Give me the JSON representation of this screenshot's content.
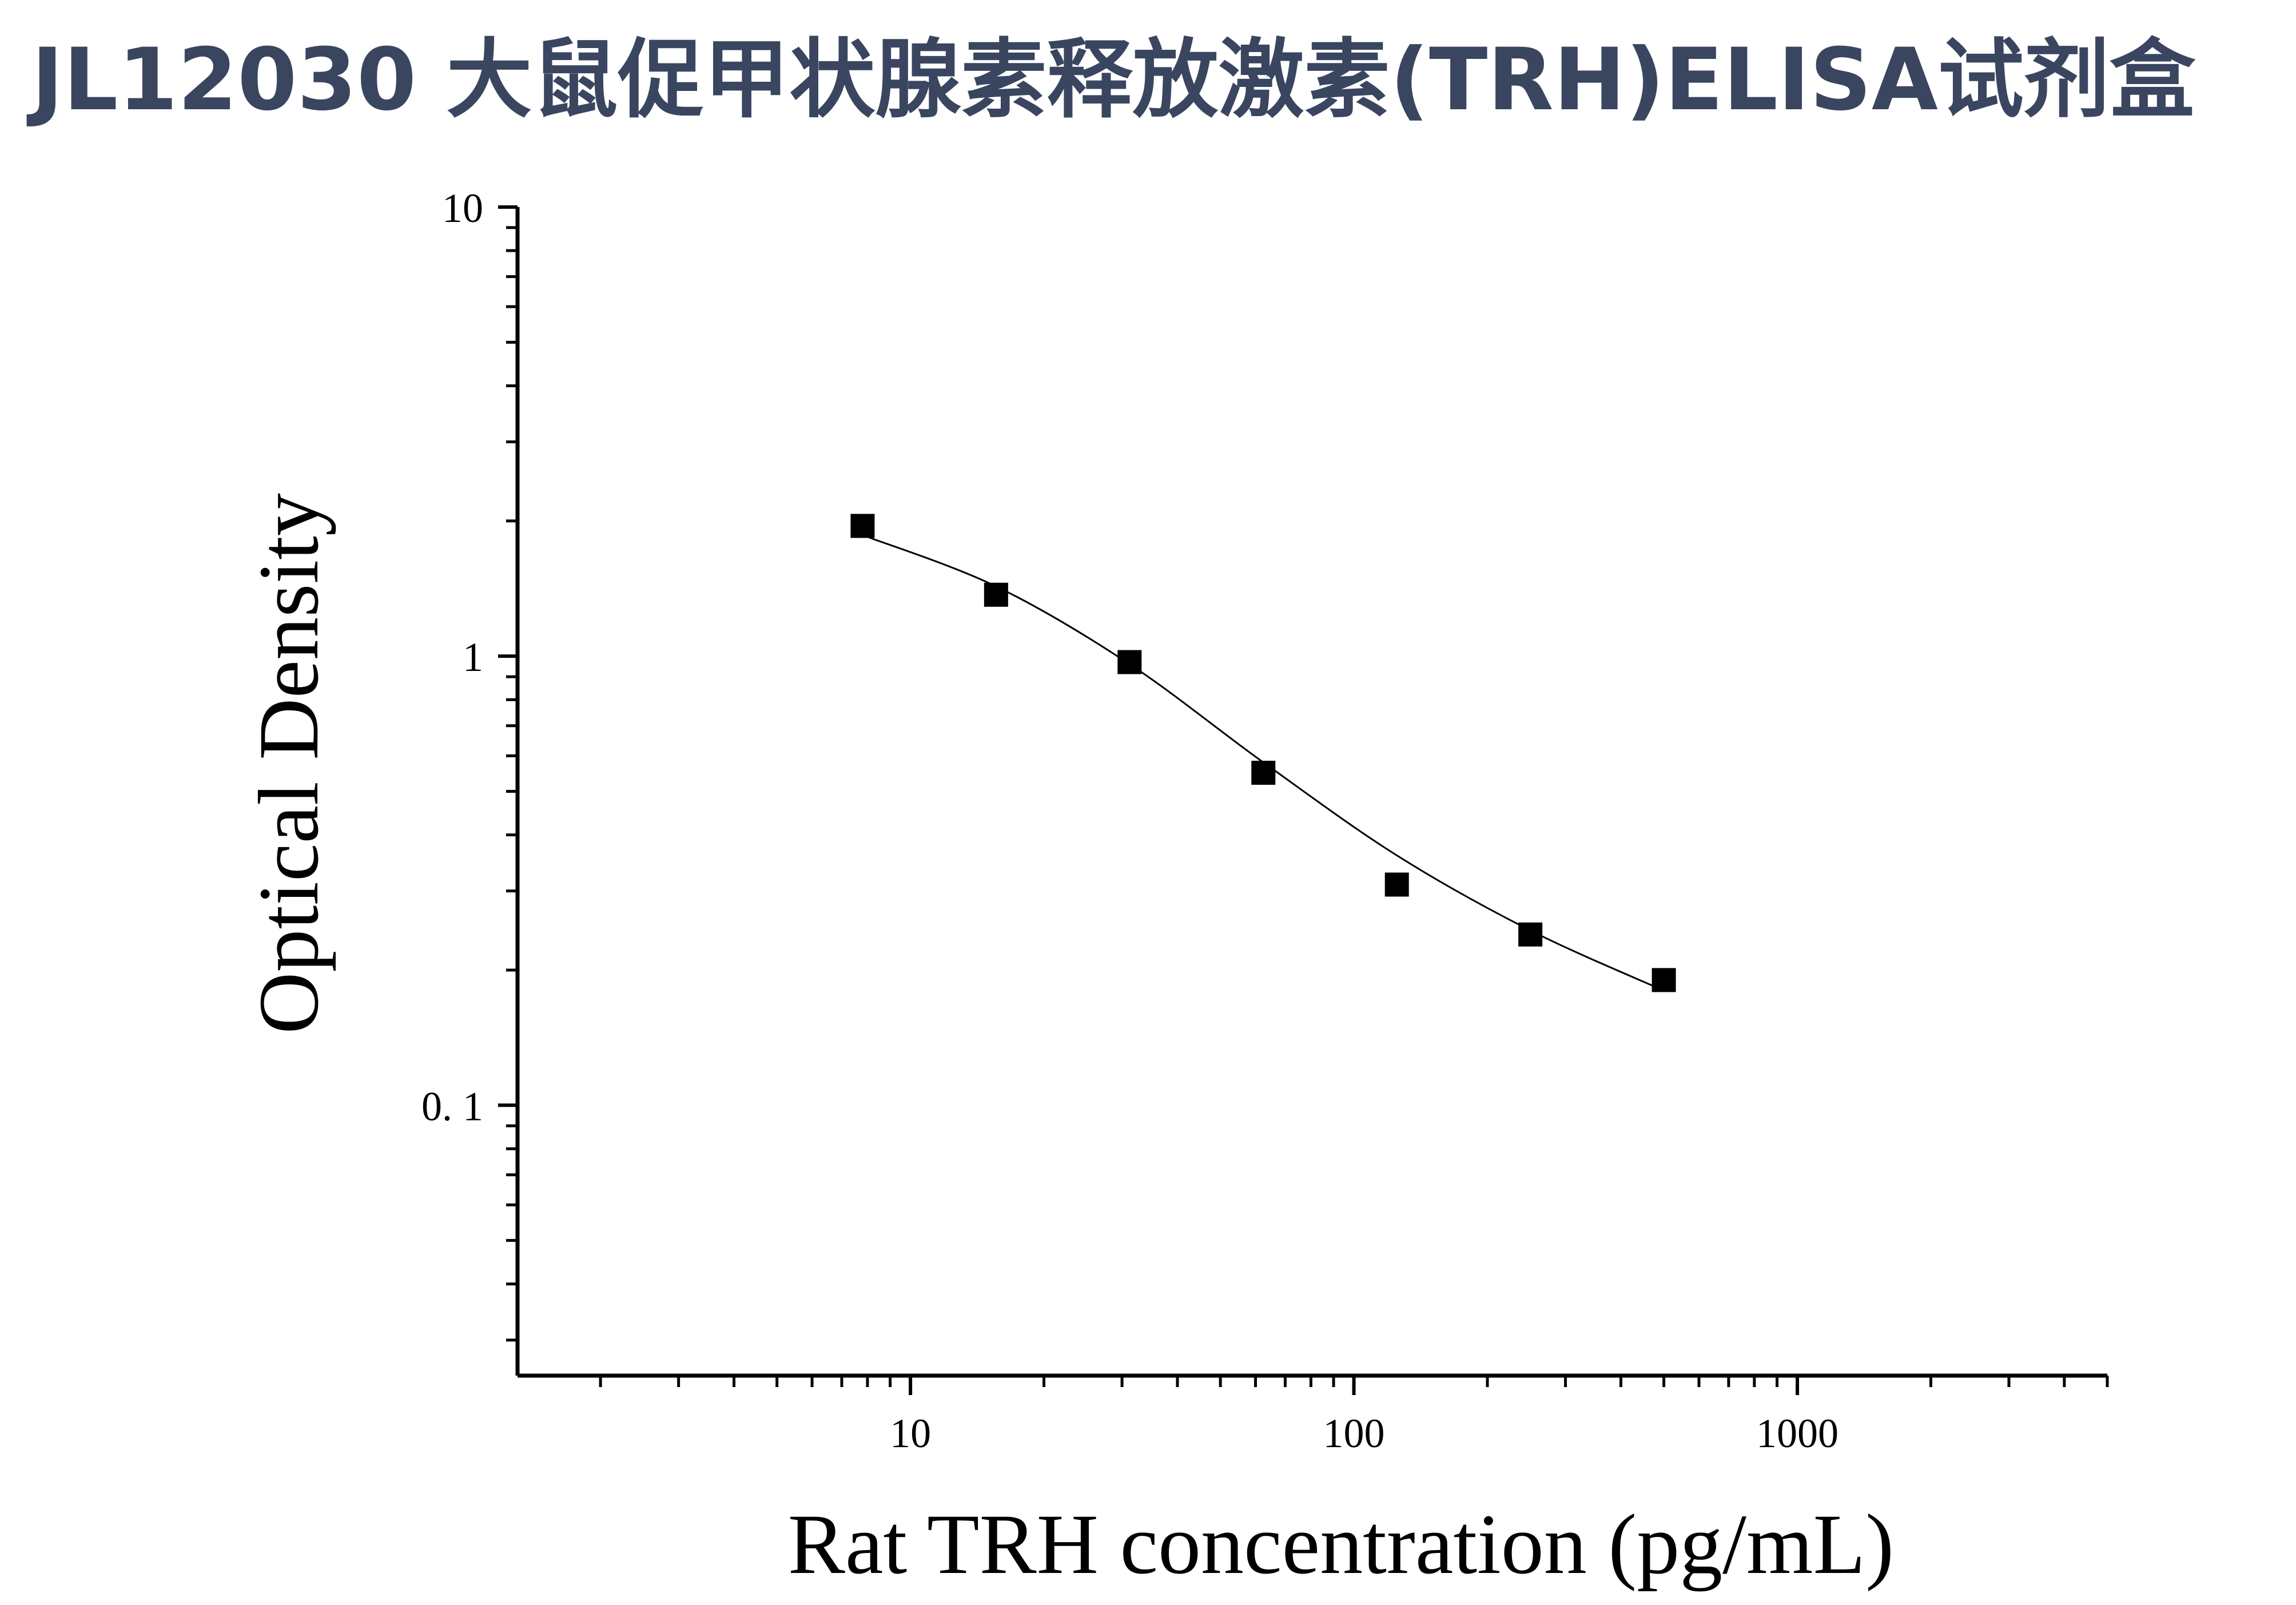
{
  "title": "JL12030 大鼠促甲状腺素释放激素(TRH)ELISA试剂盒",
  "chart_data": {
    "type": "scatter",
    "xlabel": "Rat TRH concentration (pg/mL)",
    "ylabel": "Optical Density",
    "xscale": "log",
    "yscale": "log",
    "xlim": [
      1.3,
      5000
    ],
    "ylim": [
      0.025,
      10
    ],
    "x_ticks": [
      10,
      100,
      1000
    ],
    "x_tick_labels": [
      "10",
      "100",
      "1000"
    ],
    "y_ticks": [
      0.1,
      1,
      10
    ],
    "y_tick_labels": [
      "0. 1",
      "1",
      "10"
    ],
    "grid": false,
    "legend": "none",
    "marker": "square",
    "color": "#000000",
    "series": [
      {
        "x": [
          7.8,
          15.6,
          31.2,
          62.5,
          125,
          250,
          500
        ],
        "y": [
          1.95,
          1.37,
          0.97,
          0.55,
          0.31,
          0.24,
          0.19
        ]
      }
    ],
    "fit_curve": {
      "type": "4PL",
      "x": [
        7.8,
        15.6,
        31.2,
        62.5,
        125,
        250,
        500
      ],
      "y": [
        1.86,
        1.43,
        0.96,
        0.58,
        0.36,
        0.245,
        0.18
      ]
    }
  }
}
